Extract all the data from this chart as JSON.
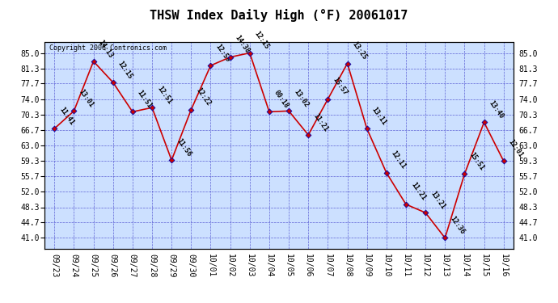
{
  "title": "THSW Index Daily High (°F) 20061017",
  "copyright": "Copyright 2006 Contronics.com",
  "dates": [
    "09/23",
    "09/24",
    "09/25",
    "09/26",
    "09/27",
    "09/28",
    "09/29",
    "09/30",
    "10/01",
    "10/02",
    "10/03",
    "10/04",
    "10/05",
    "10/06",
    "10/07",
    "10/08",
    "10/09",
    "10/10",
    "10/11",
    "10/12",
    "10/13",
    "10/14",
    "10/15",
    "10/16"
  ],
  "values": [
    67.0,
    71.2,
    83.0,
    78.0,
    71.0,
    72.0,
    59.5,
    71.5,
    82.0,
    84.0,
    85.0,
    71.0,
    71.2,
    65.5,
    74.0,
    82.5,
    67.0,
    56.5,
    49.0,
    47.0,
    41.0,
    56.2,
    68.5,
    59.3
  ],
  "labels": [
    "11:41",
    "13:01",
    "14:13",
    "12:15",
    "11:51",
    "12:51",
    "11:56",
    "12:22",
    "12:59",
    "14:38",
    "12:15",
    "00:18",
    "13:02",
    "11:21",
    "15:57",
    "13:25",
    "13:11",
    "12:11",
    "11:21",
    "13:21",
    "12:36",
    "15:51",
    "13:40",
    "12:01"
  ],
  "yticks": [
    41.0,
    44.7,
    48.3,
    52.0,
    55.7,
    59.3,
    63.0,
    66.7,
    70.3,
    74.0,
    77.7,
    81.3,
    85.0
  ],
  "ylim": [
    38.5,
    87.5
  ],
  "line_color": "#cc0000",
  "marker_color": "#cc0000",
  "marker_edge_color": "#0000aa",
  "bg_color": "#cce0ff",
  "grid_color": "#4444cc",
  "title_fontsize": 11,
  "label_fontsize": 6,
  "tick_fontsize": 7,
  "copyright_fontsize": 6
}
